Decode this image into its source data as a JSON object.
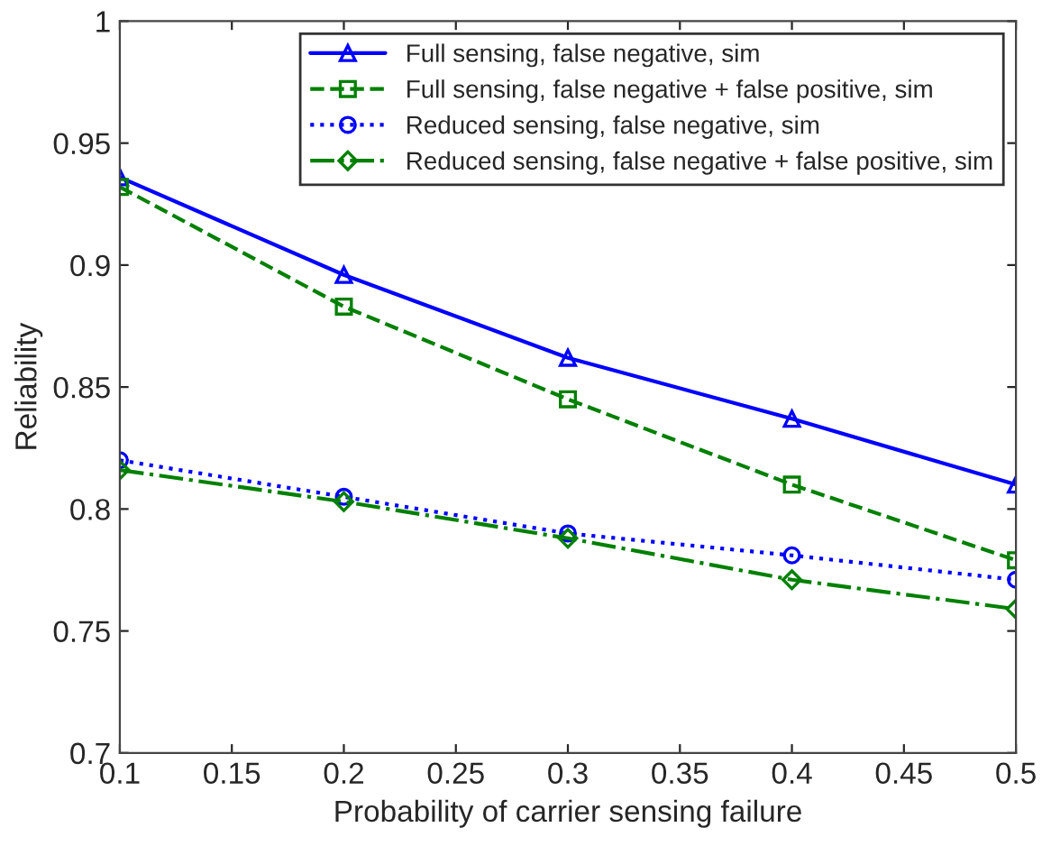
{
  "chart_data": {
    "type": "line",
    "xlabel": "Probability of carrier sensing failure",
    "ylabel": "Reliability",
    "x": [
      0.1,
      0.2,
      0.3,
      0.4,
      0.5
    ],
    "series": [
      {
        "name": "Full sensing, false negative, sim",
        "color": "#0000ff",
        "marker": "triangle",
        "line_style": "solid",
        "values": [
          0.936,
          0.896,
          0.862,
          0.837,
          0.81
        ]
      },
      {
        "name": "Full sensing, false negative + false positive, sim",
        "color": "#008000",
        "marker": "square",
        "line_style": "dashed",
        "values": [
          0.932,
          0.883,
          0.845,
          0.81,
          0.779
        ]
      },
      {
        "name": "Reduced sensing, false negative, sim",
        "color": "#0000ff",
        "marker": "circle",
        "line_style": "dotted",
        "values": [
          0.82,
          0.805,
          0.79,
          0.781,
          0.771
        ]
      },
      {
        "name": "Reduced sensing, false negative + false positive, sim",
        "color": "#008000",
        "marker": "diamond",
        "line_style": "dashdot",
        "values": [
          0.816,
          0.803,
          0.788,
          0.771,
          0.759
        ]
      }
    ],
    "xlim": [
      0.1,
      0.5
    ],
    "xticks": [
      0.1,
      0.15,
      0.2,
      0.25,
      0.3,
      0.35,
      0.4,
      0.45,
      0.5
    ],
    "ylim": [
      0.7,
      1
    ],
    "yticks": [
      0.7,
      0.75,
      0.8,
      0.85,
      0.9,
      0.95,
      1
    ],
    "grid": false,
    "legend": "top right"
  }
}
